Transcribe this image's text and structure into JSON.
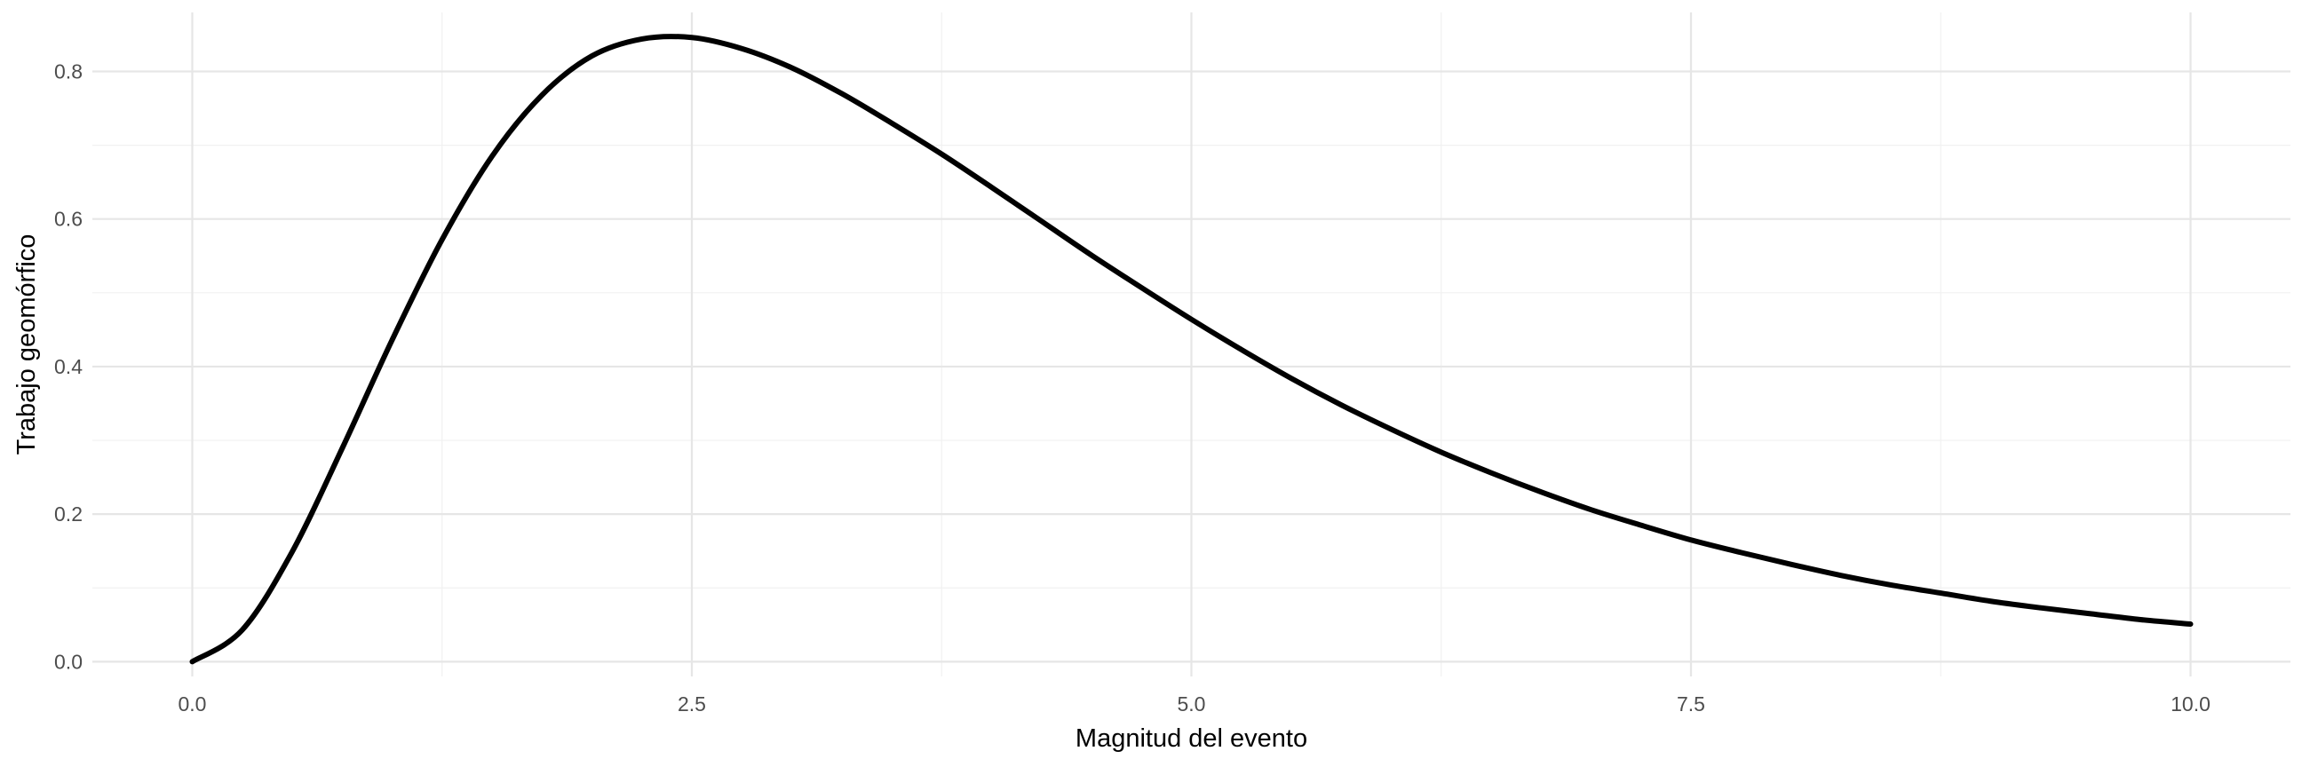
{
  "chart_data": {
    "type": "line",
    "title": "",
    "xlabel": "Magnitud del evento",
    "ylabel": "Trabajo geomórfico",
    "xlim": [
      -0.5,
      10.5
    ],
    "ylim": [
      -0.02,
      0.88
    ],
    "grid": true,
    "legend": "none",
    "x_ticks": [
      0.0,
      2.5,
      5.0,
      7.5,
      10.0
    ],
    "x_tick_labels": [
      "0.0",
      "2.5",
      "5.0",
      "7.5",
      "10.0"
    ],
    "x_minor_ticks": [
      1.25,
      3.75,
      6.25,
      8.75
    ],
    "y_ticks": [
      0.0,
      0.2,
      0.4,
      0.6,
      0.8
    ],
    "y_tick_labels": [
      "0.0",
      "0.2",
      "0.4",
      "0.6",
      "0.8"
    ],
    "y_minor_ticks": [
      0.1,
      0.3,
      0.5,
      0.7
    ],
    "series": [
      {
        "color": "#000000",
        "x": [
          0.0,
          0.25,
          0.5,
          0.75,
          1.0,
          1.25,
          1.5,
          1.75,
          2.0,
          2.25,
          2.5,
          2.75,
          3.0,
          3.25,
          3.5,
          3.75,
          4.0,
          4.25,
          4.5,
          4.75,
          5.0,
          5.25,
          5.5,
          5.75,
          6.0,
          6.25,
          6.5,
          6.75,
          7.0,
          7.25,
          7.5,
          7.75,
          8.0,
          8.25,
          8.5,
          8.75,
          9.0,
          9.25,
          9.5,
          9.75,
          10.0
        ],
        "y": [
          0.0,
          0.043,
          0.149,
          0.289,
          0.436,
          0.572,
          0.685,
          0.768,
          0.821,
          0.844,
          0.846,
          0.831,
          0.805,
          0.77,
          0.73,
          0.688,
          0.643,
          0.597,
          0.551,
          0.507,
          0.464,
          0.423,
          0.384,
          0.348,
          0.315,
          0.284,
          0.256,
          0.23,
          0.206,
          0.185,
          0.165,
          0.148,
          0.132,
          0.117,
          0.104,
          0.093,
          0.082,
          0.073,
          0.065,
          0.057,
          0.051
        ]
      }
    ]
  }
}
